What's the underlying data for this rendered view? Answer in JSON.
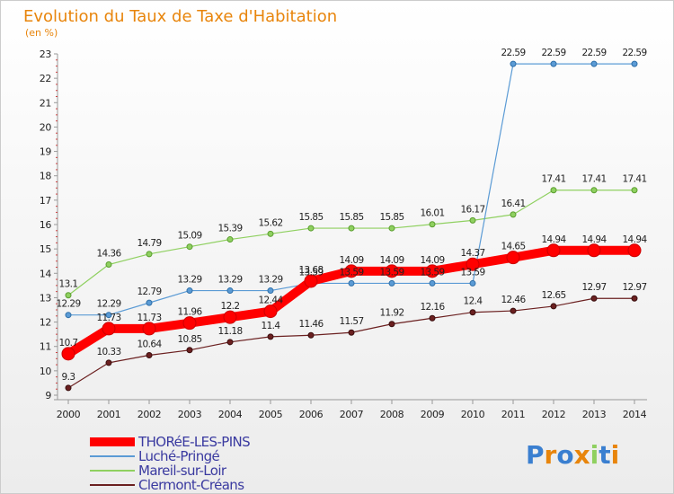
{
  "chart_data": {
    "type": "line",
    "title": "Evolution du Taux de Taxe d'Habitation",
    "subtitle": "(en %)",
    "x": [
      "2000",
      "2001",
      "2002",
      "2003",
      "2004",
      "2005",
      "2006",
      "2007",
      "2008",
      "2009",
      "2010",
      "2011",
      "2012",
      "2013",
      "2014"
    ],
    "y_ticks": [
      "9",
      "10",
      "11",
      "12",
      "13",
      "14",
      "15",
      "16",
      "17",
      "18",
      "19",
      "20",
      "21",
      "22",
      "23"
    ],
    "ylim": [
      9,
      23
    ],
    "grid": false,
    "legend_position": "bottom-left",
    "series": [
      {
        "name": "THORéE-LES-PINS",
        "color": "#ff0000",
        "values": [
          10.7,
          11.73,
          11.73,
          11.96,
          12.2,
          12.44,
          13.68,
          14.09,
          14.09,
          14.09,
          14.37,
          14.65,
          14.94,
          14.94,
          14.94
        ],
        "labels": [
          "10.7",
          "11.73",
          "11.73",
          "11.96",
          "12.2",
          "12.44",
          "13.68",
          "14.09",
          "14.09",
          "14.09",
          "14.37",
          "14.65",
          "14.94",
          "14.94",
          "14.94"
        ]
      },
      {
        "name": "Luché-Pringé",
        "color": "#5b9bd5",
        "values": [
          12.29,
          12.29,
          12.79,
          13.29,
          13.29,
          13.29,
          13.59,
          13.59,
          13.59,
          13.59,
          13.59,
          22.59,
          22.59,
          22.59,
          22.59
        ],
        "labels": [
          "12.29",
          "12.29",
          "12.79",
          "13.29",
          "13.29",
          "13.29",
          "13.59",
          "13.59",
          "13.59",
          "13.59",
          "13.59",
          "22.59",
          "22.59",
          "22.59",
          "22.59"
        ]
      },
      {
        "name": "Mareil-sur-Loir",
        "color": "#8fd060",
        "values": [
          13.1,
          14.36,
          14.79,
          15.09,
          15.39,
          15.62,
          15.85,
          15.85,
          15.85,
          16.01,
          16.17,
          16.41,
          17.41,
          17.41,
          17.41
        ],
        "labels": [
          "13.1",
          "14.36",
          "14.79",
          "15.09",
          "15.39",
          "15.62",
          "15.85",
          "15.85",
          "15.85",
          "16.01",
          "16.17",
          "16.41",
          "17.41",
          "17.41",
          "17.41"
        ]
      },
      {
        "name": "Clermont-Créans",
        "color": "#6b2020",
        "values": [
          9.3,
          10.33,
          10.64,
          10.85,
          11.18,
          11.4,
          11.46,
          11.57,
          11.92,
          12.16,
          12.4,
          12.46,
          12.65,
          12.97,
          12.97
        ],
        "labels": [
          "9.3",
          "10.33",
          "10.64",
          "10.85",
          "11.18",
          "11.4",
          "11.46",
          "11.57",
          "11.92",
          "12.16",
          "12.4",
          "12.46",
          "12.65",
          "12.97",
          "12.97"
        ]
      }
    ]
  },
  "watermark": {
    "text": "Proxiti",
    "colors": [
      "#3a7fd0",
      "#e8850c",
      "#3a7fd0",
      "#e8850c",
      "#8fd060",
      "#3a7fd0",
      "#e8850c"
    ]
  }
}
